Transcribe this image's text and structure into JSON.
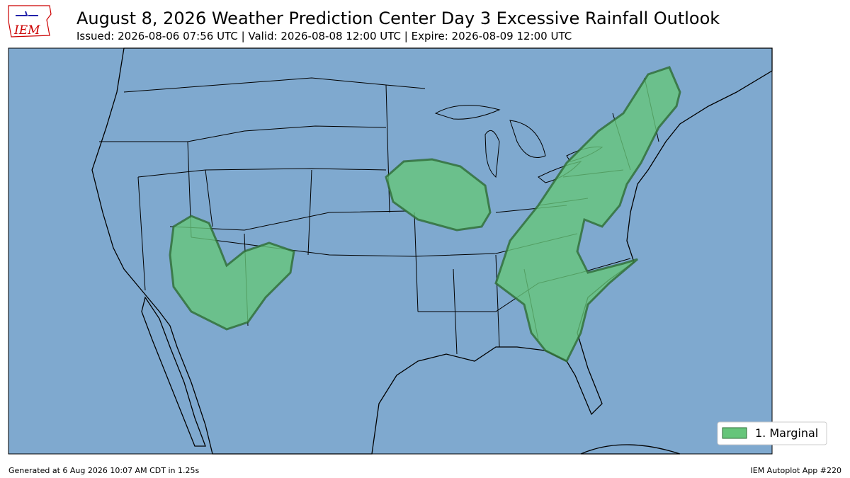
{
  "header": {
    "logo": "IEM",
    "title": "August 8, 2026 Weather Prediction Center Day 3 Excessive Rainfall Outlook",
    "subtitle": "Issued: 2026-08-06 07:56 UTC | Valid: 2026-08-08 12:00 UTC | Expire: 2026-08-09 12:00 UTC"
  },
  "legend": {
    "items": [
      {
        "label": "1. Marginal",
        "color": "#66c57a"
      }
    ]
  },
  "footer": {
    "left": "Generated at 6 Aug 2026 10:07 AM CDT in 1.25s",
    "right": "IEM Autoplot App #220"
  }
}
